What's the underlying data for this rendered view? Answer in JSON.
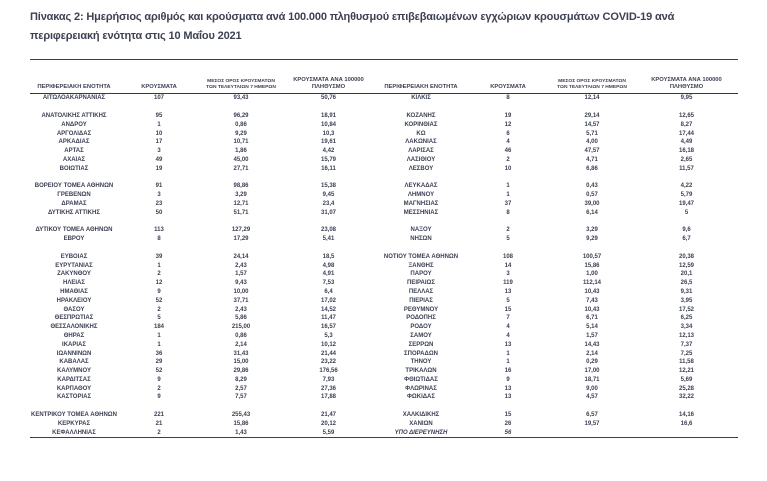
{
  "page": {
    "title": "Πίνακας 2: Ημερήσιος αριθμός και κρούσματα ανά 100.000 πληθυσμού επιβεβαιωμένων εγχώριων κρουσμάτων COVID-19 ανά περιφερειακή ενότητα στις 10 Μαΐου 2021"
  },
  "colors": {
    "text": "#3c4053",
    "rule": "#3f3f3f",
    "background": "#ffffff"
  },
  "table": {
    "column_headers": {
      "region": "ΠΕΡΙΦΕΡΕΙΑΚΗ ΕΝΟΤΗΤΑ",
      "cases": "ΚΡΟΥΣΜΑΤΑ",
      "avg7_line1": "ΜΕΣΟΣ ΟΡΟΣ ΚΡΟΥΣΜΑΤΩΝ",
      "avg7_line2": "ΤΩΝ ΤΕΛΕΥΤΑΙΩΝ 7 ΗΜΕΡΩΝ",
      "per100k_line1": "ΚΡΟΥΣΜΑΤΑ ΑΝΑ 100000",
      "per100k_line2": "ΠΛΗΘΥΣΜΟ"
    },
    "rows": [
      {
        "left": [
          "ΑΙΤΩΛΟΑΚΑΡΝΑΝΙΑΣ",
          "107",
          "93,43",
          "50,76"
        ],
        "right": [
          "ΚΙΛΚΙΣ",
          "8",
          "12,14",
          "9,95"
        ]
      },
      {
        "spacer": true
      },
      {
        "left": [
          "ΑΝΑΤΟΛΙΚΗΣ ΑΤΤΙΚΗΣ",
          "95",
          "96,29",
          "18,91"
        ],
        "right": [
          "ΚΟΖΑΝΗΣ",
          "19",
          "29,14",
          "12,65"
        ]
      },
      {
        "left": [
          "ΑΝΔΡΟΥ",
          "1",
          "0,86",
          "10,84"
        ],
        "right": [
          "ΚΟΡΙΝΘΙΑΣ",
          "12",
          "14,57",
          "8,27"
        ]
      },
      {
        "left": [
          "ΑΡΓΟΛΙΔΑΣ",
          "10",
          "9,29",
          "10,3"
        ],
        "right": [
          "ΚΩ",
          "6",
          "5,71",
          "17,44"
        ]
      },
      {
        "left": [
          "ΑΡΚΑΔΙΑΣ",
          "17",
          "10,71",
          "19,61"
        ],
        "right": [
          "ΛΑΚΩΝΙΑΣ",
          "4",
          "4,00",
          "4,49"
        ]
      },
      {
        "left": [
          "ΑΡΤΑΣ",
          "3",
          "1,86",
          "4,42"
        ],
        "right": [
          "ΛΑΡΙΣΑΣ",
          "46",
          "47,57",
          "16,18"
        ]
      },
      {
        "left": [
          "ΑΧΑΪΑΣ",
          "49",
          "45,00",
          "15,79"
        ],
        "right": [
          "ΛΑΣΙΘΙΟΥ",
          "2",
          "4,71",
          "2,65"
        ]
      },
      {
        "left": [
          "ΒΟΙΩΤΙΑΣ",
          "19",
          "27,71",
          "16,11"
        ],
        "right": [
          "ΛΕΣΒΟΥ",
          "10",
          "6,86",
          "11,57"
        ]
      },
      {
        "spacer": true
      },
      {
        "left": [
          "ΒΟΡΕΙΟΥ ΤΟΜΕΑ ΑΘΗΝΩΝ",
          "91",
          "98,86",
          "15,38"
        ],
        "right": [
          "ΛΕΥΚΑΔΑΣ",
          "1",
          "0,43",
          "4,22"
        ]
      },
      {
        "left": [
          "ΓΡΕΒΕΝΩΝ",
          "3",
          "3,29",
          "9,45"
        ],
        "right": [
          "ΛΗΜΝΟΥ",
          "1",
          "0,57",
          "5,79"
        ]
      },
      {
        "left": [
          "ΔΡΑΜΑΣ",
          "23",
          "12,71",
          "23,4"
        ],
        "right": [
          "ΜΑΓΝΗΣΙΑΣ",
          "37",
          "39,00",
          "19,47"
        ]
      },
      {
        "left": [
          "ΔΥΤΙΚΗΣ ΑΤΤΙΚΗΣ",
          "50",
          "51,71",
          "31,07"
        ],
        "right": [
          "ΜΕΣΣΗΝΙΑΣ",
          "8",
          "6,14",
          "5"
        ]
      },
      {
        "spacer": true
      },
      {
        "left": [
          "ΔΥΤΙΚΟΥ ΤΟΜΕΑ ΑΘΗΝΩΝ",
          "113",
          "127,29",
          "23,08"
        ],
        "right": [
          "ΝΑΞΟΥ",
          "2",
          "3,29",
          "9,6"
        ]
      },
      {
        "left": [
          "ΕΒΡΟΥ",
          "8",
          "17,29",
          "5,41"
        ],
        "right": [
          "ΝΗΣΩΝ",
          "5",
          "9,29",
          "6,7"
        ]
      },
      {
        "spacer": true
      },
      {
        "left": [
          "ΕΥΒΟΙΑΣ",
          "39",
          "24,14",
          "18,5"
        ],
        "right": [
          "ΝΟΤΙΟΥ ΤΟΜΕΑ ΑΘΗΝΩΝ",
          "108",
          "100,57",
          "20,38"
        ]
      },
      {
        "left": [
          "ΕΥΡΥΤΑΝΙΑΣ",
          "1",
          "2,43",
          "4,98"
        ],
        "right": [
          "ΞΑΝΘΗΣ",
          "14",
          "15,86",
          "12,59"
        ]
      },
      {
        "left": [
          "ΖΑΚΥΝΘΟΥ",
          "2",
          "1,57",
          "4,91"
        ],
        "right": [
          "ΠΑΡΟΥ",
          "3",
          "1,00",
          "20,1"
        ]
      },
      {
        "left": [
          "ΗΛΕΙΑΣ",
          "12",
          "9,43",
          "7,53"
        ],
        "right": [
          "ΠΕΙΡΑΙΩΣ",
          "119",
          "112,14",
          "26,5"
        ]
      },
      {
        "left": [
          "ΗΜΑΘΙΑΣ",
          "9",
          "10,00",
          "6,4"
        ],
        "right": [
          "ΠΕΛΛΑΣ",
          "13",
          "10,43",
          "9,31"
        ]
      },
      {
        "left": [
          "ΗΡΑΚΛΕΙΟΥ",
          "52",
          "37,71",
          "17,02"
        ],
        "right": [
          "ΠΙΕΡΙΑΣ",
          "5",
          "7,43",
          "3,95"
        ]
      },
      {
        "left": [
          "ΘΑΣΟΥ",
          "2",
          "2,43",
          "14,52"
        ],
        "right": [
          "ΡΕΘΥΜΝΟΥ",
          "15",
          "10,43",
          "17,52"
        ]
      },
      {
        "left": [
          "ΘΕΣΠΡΩΤΙΑΣ",
          "5",
          "5,86",
          "11,47"
        ],
        "right": [
          "ΡΟΔΟΠΗΣ",
          "7",
          "6,71",
          "6,25"
        ]
      },
      {
        "left": [
          "ΘΕΣΣΑΛΟΝΙΚΗΣ",
          "184",
          "215,00",
          "16,57"
        ],
        "right": [
          "ΡΟΔΟΥ",
          "4",
          "5,14",
          "3,34"
        ]
      },
      {
        "left": [
          "ΘΗΡΑΣ",
          "1",
          "0,86",
          "5,3"
        ],
        "right": [
          "ΣΑΜΟΥ",
          "4",
          "1,57",
          "12,13"
        ]
      },
      {
        "left": [
          "ΙΚΑΡΙΑΣ",
          "1",
          "2,14",
          "10,12"
        ],
        "right": [
          "ΣΕΡΡΩΝ",
          "13",
          "14,43",
          "7,37"
        ]
      },
      {
        "left": [
          "ΙΩΑΝΝΙΝΩΝ",
          "36",
          "31,43",
          "21,44"
        ],
        "right": [
          "ΣΠΟΡΑΔΩΝ",
          "1",
          "2,14",
          "7,25"
        ]
      },
      {
        "left": [
          "ΚΑΒΑΛΑΣ",
          "29",
          "15,00",
          "23,22"
        ],
        "right": [
          "ΤΗΝΟΥ",
          "1",
          "0,29",
          "11,58"
        ]
      },
      {
        "left": [
          "ΚΑΛΥΜΝΟΥ",
          "52",
          "29,86",
          "176,56"
        ],
        "right": [
          "ΤΡΙΚΑΛΩΝ",
          "16",
          "17,00",
          "12,21"
        ]
      },
      {
        "left": [
          "ΚΑΡΔΙΤΣΑΣ",
          "9",
          "8,29",
          "7,93"
        ],
        "right": [
          "ΦΘΙΩΤΙΔΑΣ",
          "9",
          "18,71",
          "5,69"
        ]
      },
      {
        "left": [
          "ΚΑΡΠΑΘΟΥ",
          "2",
          "2,57",
          "27,36"
        ],
        "right": [
          "ΦΛΩΡΙΝΑΣ",
          "13",
          "9,00",
          "25,28"
        ]
      },
      {
        "left": [
          "ΚΑΣΤΟΡΙΑΣ",
          "9",
          "7,57",
          "17,88"
        ],
        "right": [
          "ΦΩΚΙΔΑΣ",
          "13",
          "4,57",
          "32,22"
        ]
      },
      {
        "spacer": true
      },
      {
        "left": [
          "ΚΕΝΤΡΙΚΟΥ ΤΟΜΕΑ ΑΘΗΝΩΝ",
          "221",
          "255,43",
          "21,47"
        ],
        "right": [
          "ΧΑΛΚΙΔΙΚΗΣ",
          "15",
          "6,57",
          "14,16"
        ]
      },
      {
        "left": [
          "ΚΕΡΚΥΡΑΣ",
          "21",
          "15,86",
          "20,12"
        ],
        "right": [
          "ΧΑΝΙΩΝ",
          "26",
          "19,57",
          "16,6"
        ]
      },
      {
        "left": [
          "ΚΕΦΑΛΛΗΝΙΑΣ",
          "2",
          "1,43",
          "5,59"
        ],
        "right": [
          "ΥΠΟ ΔΙΕΡΕΥΝΗΣΗ",
          "56",
          "",
          ""
        ],
        "right_italic": true
      }
    ]
  }
}
